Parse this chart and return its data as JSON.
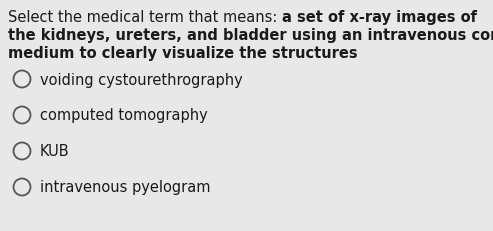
{
  "background_color": "#e8e8e8",
  "text_color": "#1a1a1a",
  "circle_color": "#555555",
  "options": [
    "voiding cystourethrography",
    "computed tomography",
    "KUB",
    "intravenous pyelogram"
  ],
  "q_line1_normal": "Select the medical term that means: ",
  "q_line1_bold": "a set of x-ray images of",
  "q_line2_bold": "the kidneys, ureters, and bladder using an intravenous contrast",
  "q_line3_bold": "medium to clearly visualize the structures",
  "question_fontsize": 10.5,
  "option_fontsize": 10.5
}
